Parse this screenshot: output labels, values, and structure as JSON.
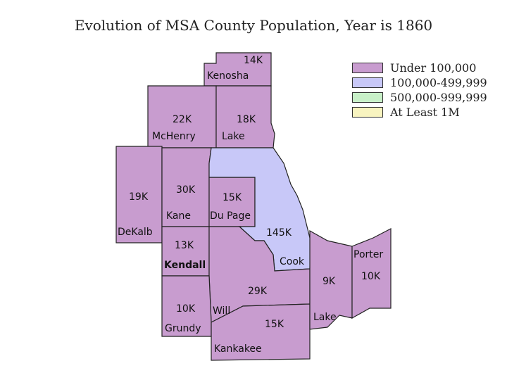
{
  "title": "Evolution of MSA County Population, Year is 1860",
  "legend": [
    {
      "label": "Under 100,000",
      "color": "#c89ccf"
    },
    {
      "label": "100,000-499,999",
      "color": "#c8c8f8"
    },
    {
      "label": "500,000-999,999",
      "color": "#c8f0c8"
    },
    {
      "label": "At Least 1M",
      "color": "#f8f4c0"
    }
  ],
  "counties": [
    {
      "name": "Kenosha",
      "population": "14K",
      "category": 0
    },
    {
      "name": "McHenry",
      "population": "22K",
      "category": 0
    },
    {
      "name": "Lake",
      "population": "18K",
      "category": 0
    },
    {
      "name": "DeKalb",
      "population": "19K",
      "category": 0
    },
    {
      "name": "Kane",
      "population": "30K",
      "category": 0
    },
    {
      "name": "Du Page",
      "population": "15K",
      "category": 0
    },
    {
      "name": "Cook",
      "population": "145K",
      "category": 1
    },
    {
      "name": "Kendall",
      "population": "13K",
      "category": 0
    },
    {
      "name": "Will",
      "population": "29K",
      "category": 0
    },
    {
      "name": "Grundy",
      "population": "10K",
      "category": 0
    },
    {
      "name": "Kankakee",
      "population": "15K",
      "category": 0
    },
    {
      "name": "Lake",
      "population": "9K",
      "category": 0
    },
    {
      "name": "Porter",
      "population": "10K",
      "category": 0
    }
  ]
}
